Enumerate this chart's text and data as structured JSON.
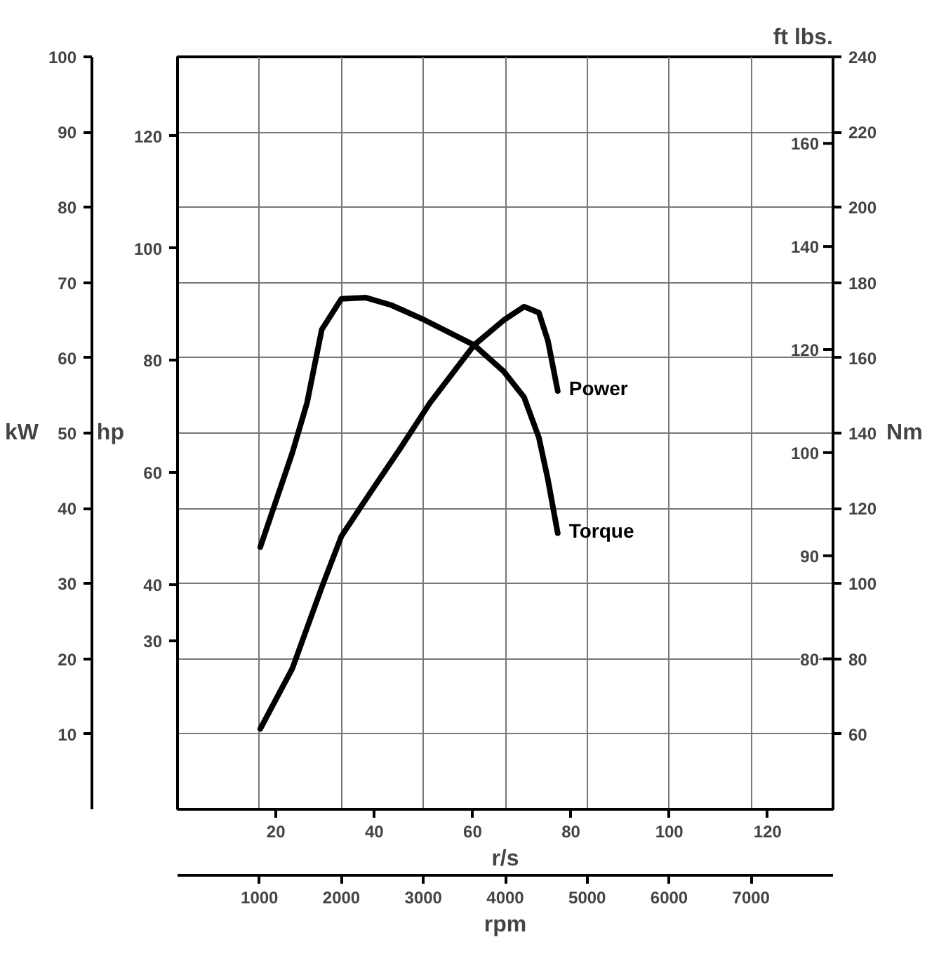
{
  "chart_data": {
    "type": "line",
    "xlabel": "rpm",
    "ylabel": "kW",
    "y2label": "Nm",
    "y3label": "hp",
    "x2label": "r/s",
    "xlim": [
      0,
      8000
    ],
    "xticks": [
      1000,
      2000,
      3000,
      4000,
      5000,
      6000,
      7000
    ],
    "x2lim": [
      0,
      133.3
    ],
    "x2ticks": [
      20,
      40,
      60,
      80,
      100,
      120
    ],
    "ylim": [
      0,
      100
    ],
    "yticks": [
      10,
      20,
      30,
      40,
      50,
      60,
      70,
      80,
      90,
      100
    ],
    "y2lim": [
      40,
      240
    ],
    "y2ticks": [
      60,
      80,
      100,
      120,
      140,
      160,
      180,
      200,
      220,
      240
    ],
    "y3lim": [
      0,
      134.1
    ],
    "y3ticks": [
      30,
      40,
      60,
      80,
      100,
      120
    ],
    "annotations": [
      "ft lbs.",
      "160",
      "140",
      "120",
      "100",
      "90",
      "80"
    ],
    "grid": true,
    "line_style": "solid",
    "series": [
      {
        "name": "Power",
        "color": "#000000",
        "x": [
          1010,
          1400,
          1760,
          2000,
          2360,
          2720,
          3080,
          3620,
          3980,
          4230,
          4410,
          4520,
          4640
        ],
        "values": [
          10.7,
          18.7,
          29.5,
          36.3,
          42.2,
          48,
          54,
          61.7,
          65,
          66.8,
          66,
          62.3,
          55.6
        ]
      },
      {
        "name": "Torque",
        "axis": "y2",
        "color": "#000000",
        "x": [
          1010,
          1400,
          1580,
          1760,
          2000,
          2300,
          2610,
          3020,
          3620,
          3980,
          4230,
          4410,
          4520,
          4640
        ],
        "values": [
          109.7,
          134.7,
          148,
          167.5,
          175.7,
          176,
          174,
          170,
          163.4,
          156.4,
          149.5,
          138.8,
          127.7,
          113.4
        ]
      }
    ]
  }
}
